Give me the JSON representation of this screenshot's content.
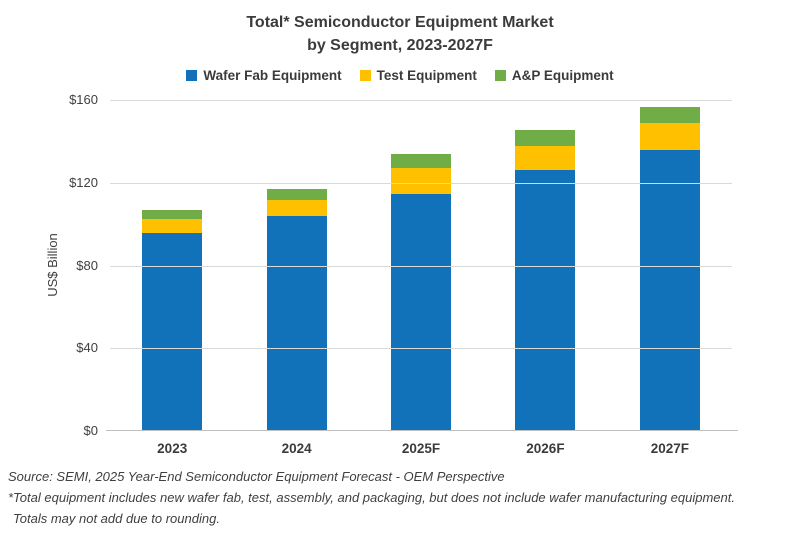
{
  "title": {
    "line1": "Total* Semiconductor Equipment Market",
    "line2": "by Segment, 2023-2027F"
  },
  "legend": {
    "items": [
      {
        "id": "wafer-fab",
        "label": "Wafer Fab Equipment",
        "color": "#1172BA"
      },
      {
        "id": "test",
        "label": "Test Equipment",
        "color": "#FFC000"
      },
      {
        "id": "ap",
        "label": "A&P Equipment",
        "color": "#70AD47"
      }
    ]
  },
  "y_axis": {
    "label": "US$ Billion",
    "ticks": [
      {
        "value": 160,
        "label": "$160"
      },
      {
        "value": 120,
        "label": "$120"
      },
      {
        "value": 80,
        "label": "$80"
      },
      {
        "value": 40,
        "label": "$40"
      },
      {
        "value": 0,
        "label": "$0"
      }
    ]
  },
  "footer": {
    "source_line": "Source: SEMI, 2025 Year-End Semiconductor Equipment Forecast - OEM Perspective",
    "note_line1": "*Total equipment includes new wafer fab, test, assembly, and packaging, but does not include wafer manufacturing equipment.",
    "note_line2": "Totals may not add due to rounding."
  },
  "chart_data": {
    "type": "bar",
    "stacked": true,
    "title": "Total* Semiconductor Equipment Market by Segment, 2023-2027F",
    "categories": [
      "2023",
      "2024",
      "2025F",
      "2026F",
      "2027F"
    ],
    "series": [
      {
        "id": "wafer-fab",
        "name": "Wafer Fab Equipment",
        "color": "#1172BA",
        "values": [
          95.5,
          104.0,
          114.7,
          126.0,
          136.0
        ]
      },
      {
        "id": "test",
        "name": "Test Equipment",
        "color": "#FFC000",
        "values": [
          6.8,
          7.6,
          12.5,
          11.9,
          12.7
        ]
      },
      {
        "id": "ap",
        "name": "A&P Equipment",
        "color": "#70AD47",
        "values": [
          4.3,
          5.2,
          6.6,
          7.7,
          7.9
        ]
      }
    ],
    "totals_estimated": [
      106.6,
      116.8,
      133.8,
      145.6,
      156.6
    ],
    "xlabel": "",
    "ylabel": "US$ Billion",
    "ylim": [
      0,
      160
    ],
    "grid": true,
    "legend_position": "top"
  }
}
